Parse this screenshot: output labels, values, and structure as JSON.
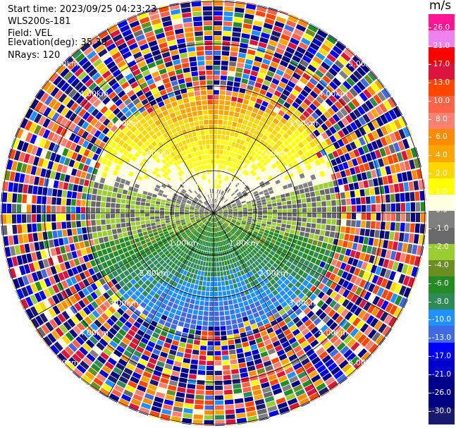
{
  "header": {
    "start_time": "Start time: 2023/09/25 04:23:23",
    "instrument": "WLS200s-181",
    "field": "Field: VEL",
    "elevation": "Elevation(deg): 35.30",
    "nrays": "NRays: 120"
  },
  "colorbar": {
    "unit": "m/s",
    "ticks": [
      "26.0",
      "21.0",
      "17.0",
      "13.0",
      "10.0",
      "8.0",
      "6.0",
      "4.0",
      "2.0",
      "1.0",
      "0.0",
      "-1.0",
      "-2.0",
      "-4.0",
      "-6.0",
      "-8.0",
      "-10.0",
      "-13.0",
      "-17.0",
      "-21.0",
      "-26.0",
      "-30.0"
    ],
    "colors": [
      "#ff1493",
      "#ee82ee",
      "#ff0000",
      "#dc143c",
      "#ff4500",
      "#ff6347",
      "#fa8072",
      "#ff8c00",
      "#ffa500",
      "#ffd700",
      "#ffff00",
      "#ffffe0",
      "#808080",
      "#696969",
      "#9acd32",
      "#6b8e23",
      "#228b22",
      "#2e8b57",
      "#1e90ff",
      "#4169e1",
      "#0000ff",
      "#0000cd",
      "#00008b",
      "#000080",
      "#191970"
    ]
  },
  "chart_data": {
    "type": "ppi",
    "field": "VEL",
    "units": "m/s",
    "n_rays": 120,
    "range_rings_km": [
      1,
      2,
      3,
      4,
      5
    ],
    "ring_label": "km",
    "vmin": -30,
    "vmax": 30,
    "levels": [
      -30,
      -26,
      -21,
      -17,
      -13,
      -10,
      -8,
      -6,
      -4,
      -2,
      -1,
      0,
      1,
      2,
      4,
      6,
      8,
      10,
      13,
      17,
      21,
      26,
      30
    ],
    "range_labels": [
      "1.00km",
      "2.00km",
      "3.00km",
      "4.00km",
      "5.00km"
    ],
    "inner_region_km": 2.6,
    "pattern": "near-range: positive (toward top/north) and negative (toward bottom/south); far-range: noisy random values"
  }
}
